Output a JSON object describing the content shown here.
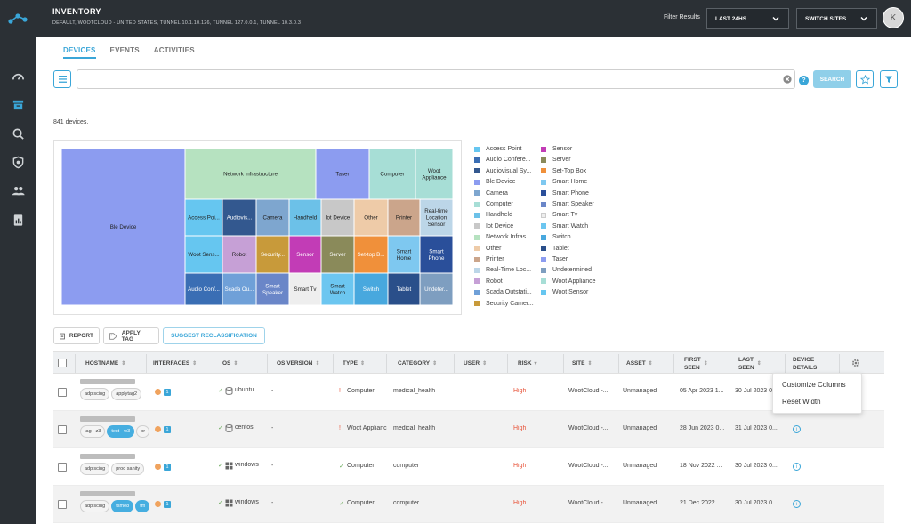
{
  "header": {
    "title": "INVENTORY",
    "subtitle": "DEFAULT, WOOTCLOUD - UNITED STATES, TUNNEL 10.1.10.126, TUNNEL 127.0.0.1, TUNNEL 10.3.0.3",
    "filter_label": "Filter Results",
    "time_select": "LAST 24HS",
    "site_select": "SWITCH SITES",
    "avatar_initial": "K"
  },
  "tabs": [
    "DEVICES",
    "EVENTS",
    "ACTIVITIES"
  ],
  "search": {
    "value": "",
    "button": "SEARCH"
  },
  "device_count": "841 devices.",
  "chart_data": {
    "type": "treemap",
    "cells": [
      {
        "label": "Ble Device",
        "color": "#8c9cf0"
      },
      {
        "label": "Network Infrastructure",
        "color": "#b6e2c0"
      },
      {
        "label": "Taser",
        "color": "#8c9cf0"
      },
      {
        "label": "Computer",
        "color": "#a7ded6"
      },
      {
        "label": "Woot Appliance",
        "color": "#a7ded6"
      },
      {
        "label": "Access Poi...",
        "color": "#66c6f0"
      },
      {
        "label": "Audiovis...",
        "color": "#33588f"
      },
      {
        "label": "Camera",
        "color": "#7ea6cf"
      },
      {
        "label": "Handheld",
        "color": "#6cc1e8"
      },
      {
        "label": "Iot Device",
        "color": "#c8c8c8"
      },
      {
        "label": "Other",
        "color": "#eecba8"
      },
      {
        "label": "Printer",
        "color": "#cba58b"
      },
      {
        "label": "Real-time Location Sensor",
        "color": "#bcd6e8"
      },
      {
        "label": "Woot Sens...",
        "color": "#66c6f0"
      },
      {
        "label": "Robot",
        "color": "#c6a0d6"
      },
      {
        "label": "Security...",
        "color": "#c89a3a"
      },
      {
        "label": "Sensor",
        "color": "#c23cb6"
      },
      {
        "label": "Server",
        "color": "#8a8a5a"
      },
      {
        "label": "Set-top B...",
        "color": "#f0903a"
      },
      {
        "label": "Smart Home",
        "color": "#7ec8f0"
      },
      {
        "label": "Smart Phone",
        "color": "#2a4f9a"
      },
      {
        "label": "Audio Conf...",
        "color": "#3a6eb4"
      },
      {
        "label": "Scada Ou...",
        "color": "#6fa0d8"
      },
      {
        "label": "Smart Speaker",
        "color": "#6a86c8"
      },
      {
        "label": "Smart Tv",
        "color": "#eeeeee"
      },
      {
        "label": "Smart Watch",
        "color": "#6cc6f0"
      },
      {
        "label": "Switch",
        "color": "#48a8de"
      },
      {
        "label": "Tablet",
        "color": "#2a4f8a"
      },
      {
        "label": "Undeter...",
        "color": "#7e9ec0"
      }
    ],
    "legend": [
      {
        "label": "Access Point",
        "color": "#66c6f0"
      },
      {
        "label": "Audio Confere...",
        "color": "#3a6eb4"
      },
      {
        "label": "Audiovisual Sy...",
        "color": "#33588f"
      },
      {
        "label": "Ble Device",
        "color": "#8c9cf0"
      },
      {
        "label": "Camera",
        "color": "#7ea6cf"
      },
      {
        "label": "Computer",
        "color": "#a7ded6"
      },
      {
        "label": "Handheld",
        "color": "#6cc1e8"
      },
      {
        "label": "Iot Device",
        "color": "#c8c8c8"
      },
      {
        "label": "Network Infras...",
        "color": "#b6e2c0"
      },
      {
        "label": "Other",
        "color": "#eecba8"
      },
      {
        "label": "Printer",
        "color": "#cba58b"
      },
      {
        "label": "Real-Time Loc...",
        "color": "#bcd6e8"
      },
      {
        "label": "Robot",
        "color": "#c6a0d6"
      },
      {
        "label": "Scada Outstati...",
        "color": "#6fa0d8"
      },
      {
        "label": "Security Camer...",
        "color": "#c89a3a"
      },
      {
        "label": "Sensor",
        "color": "#c23cb6"
      },
      {
        "label": "Server",
        "color": "#8a8a5a"
      },
      {
        "label": "Set-Top Box",
        "color": "#f0903a"
      },
      {
        "label": "Smart Home",
        "color": "#7ec8f0"
      },
      {
        "label": "Smart Phone",
        "color": "#2a4f9a"
      },
      {
        "label": "Smart Speaker",
        "color": "#6a86c8"
      },
      {
        "label": "Smart Tv",
        "color": "#eeeeee"
      },
      {
        "label": "Smart Watch",
        "color": "#6cc6f0"
      },
      {
        "label": "Switch",
        "color": "#48a8de"
      },
      {
        "label": "Tablet",
        "color": "#2a4f8a"
      },
      {
        "label": "Taser",
        "color": "#8c9cf0"
      },
      {
        "label": "Undetermined",
        "color": "#7e9ec0"
      },
      {
        "label": "Woot Appliance",
        "color": "#a7ded6"
      },
      {
        "label": "Woot Sensor",
        "color": "#66c6f0"
      }
    ]
  },
  "actions": {
    "report": "REPORT",
    "apply_tag": "APPLY TAG",
    "suggest": "SUGGEST RECLASSIFICATION"
  },
  "columns": [
    "HOSTNAME",
    "INTERFACES",
    "OS",
    "OS VERSION",
    "TYPE",
    "CATEGORY",
    "USER",
    "RISK",
    "SITE",
    "ASSET",
    "FIRST SEEN",
    "LAST SEEN",
    "DEVICE DETAILS"
  ],
  "rows": [
    {
      "tags": [
        {
          "t": "adpiscing",
          "blue": false
        },
        {
          "t": "applytag2",
          "blue": false
        }
      ],
      "iface": "1",
      "os_icon": "db",
      "os": "ubuntu",
      "os_version": "-",
      "type_mark": "!",
      "type": "Computer",
      "category": "medical_health",
      "user": "",
      "risk": "High",
      "site": "WootCloud -...",
      "asset": "Unmanaged",
      "first_seen": "05 Apr 2023 1...",
      "last_seen": "30 Jul 2023 0..."
    },
    {
      "tags": [
        {
          "t": "tag - z3",
          "blue": false
        },
        {
          "t": "test - w3",
          "blue": true
        },
        {
          "t": "pr",
          "blue": false
        }
      ],
      "iface": "1",
      "os_icon": "db",
      "os": "centos",
      "os_version": "-",
      "type_mark": "!",
      "type": "Woot Applianc",
      "category": "medical_health",
      "user": "",
      "risk": "High",
      "site": "WootCloud -...",
      "asset": "Unmanaged",
      "first_seen": "28 Jun 2023 0...",
      "last_seen": "31 Jul 2023 0..."
    },
    {
      "tags": [
        {
          "t": "adpiscing",
          "blue": false
        },
        {
          "t": "prod sanity",
          "blue": false
        }
      ],
      "iface": "1",
      "os_icon": "win",
      "os": "windows",
      "os_version": "-",
      "type_mark": "✓",
      "type": "Computer",
      "category": "computer",
      "user": "",
      "risk": "High",
      "site": "WootCloud -...",
      "asset": "Unmanaged",
      "first_seen": "18 Nov 2022 ...",
      "last_seen": "30 Jul 2023 0..."
    },
    {
      "tags": [
        {
          "t": "adpiscing",
          "blue": false
        },
        {
          "t": "tsme8",
          "blue": true
        },
        {
          "t": "tm",
          "blue": true
        }
      ],
      "iface": "1",
      "os_icon": "win",
      "os": "windows",
      "os_version": "-",
      "type_mark": "✓",
      "type": "Computer",
      "category": "computer",
      "user": "",
      "risk": "High",
      "site": "WootCloud -...",
      "asset": "Unmanaged",
      "first_seen": "21 Dec 2022 ...",
      "last_seen": "30 Jul 2023 0..."
    }
  ],
  "column_menu": {
    "customize": "Customize Columns",
    "reset": "Reset Width"
  }
}
